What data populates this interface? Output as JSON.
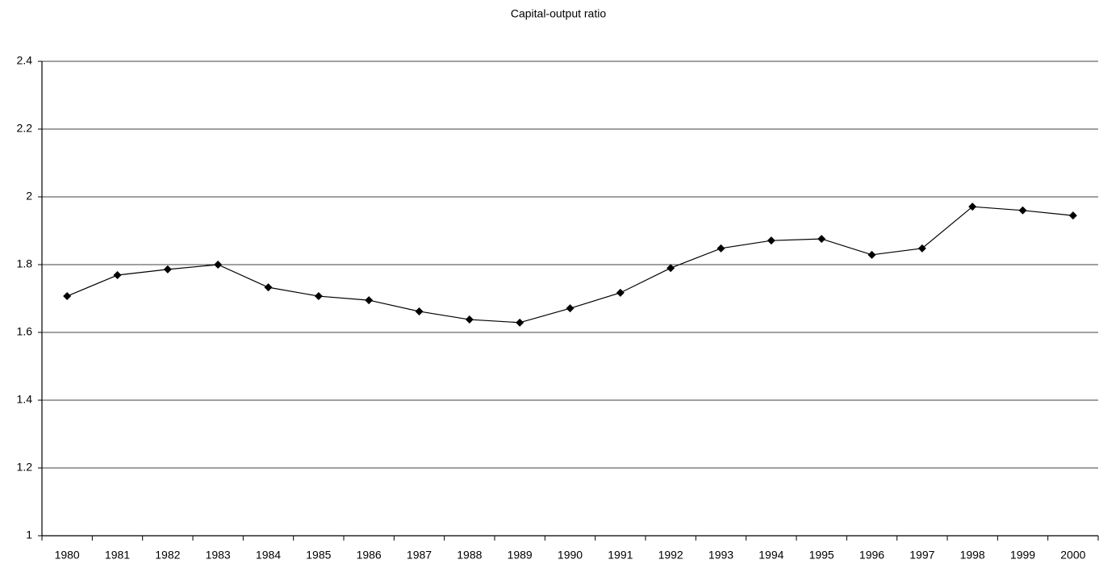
{
  "chart_data": {
    "type": "line",
    "title": "Capital-output ratio",
    "categories": [
      "1980",
      "1981",
      "1982",
      "1983",
      "1984",
      "1985",
      "1986",
      "1987",
      "1988",
      "1989",
      "1990",
      "1991",
      "1992",
      "1993",
      "1994",
      "1995",
      "1996",
      "1997",
      "1998",
      "1999",
      "2000"
    ],
    "series": [
      {
        "name": "Capital-output ratio",
        "color": "#000000",
        "values": [
          1.707,
          1.769,
          1.786,
          1.8,
          1.733,
          1.707,
          1.695,
          1.662,
          1.638,
          1.629,
          1.671,
          1.717,
          1.79,
          1.848,
          1.871,
          1.876,
          1.829,
          1.848,
          1.971,
          1.96,
          1.945
        ]
      }
    ],
    "ylim": [
      1,
      2.4
    ],
    "yticks": [
      1,
      1.2,
      1.4,
      1.6,
      1.8,
      2,
      2.2,
      2.4
    ],
    "grid": true
  }
}
